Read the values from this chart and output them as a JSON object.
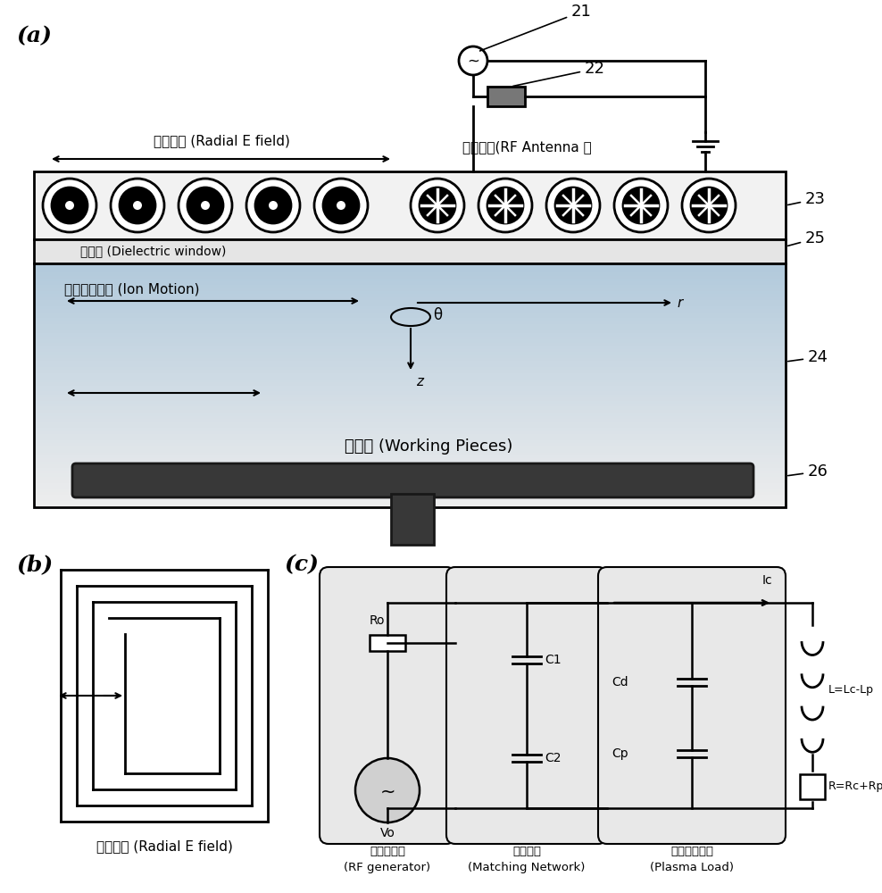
{
  "bg_color": "#ffffff",
  "label_a": "(a)",
  "label_b": "(b)",
  "label_c": "(c)",
  "text_radial_field": "径向电场 (Radial E field)",
  "text_rf_antenna": "射频天线(RF Antenna ）",
  "text_dielectric": "电介质 (Dielectric window)",
  "text_ion_motion": "离子运动方向 (Ion Motion)",
  "text_working_pieces": "样品架 (Working Pieces)",
  "text_radial_field_b": "径向电场 (Radial E field)",
  "text_rf_generator_zh": "射频发生器",
  "text_rf_generator_en": "(RF generator)",
  "text_matching_zh": "匹配网络",
  "text_matching_en": "(Matching Network)",
  "text_plasma_zh": "等离子体负载",
  "text_plasma_en": "(Plasma Load)",
  "num_21": "21",
  "num_22": "22",
  "num_23": "23",
  "num_24": "24",
  "num_25": "25",
  "num_26": "26"
}
